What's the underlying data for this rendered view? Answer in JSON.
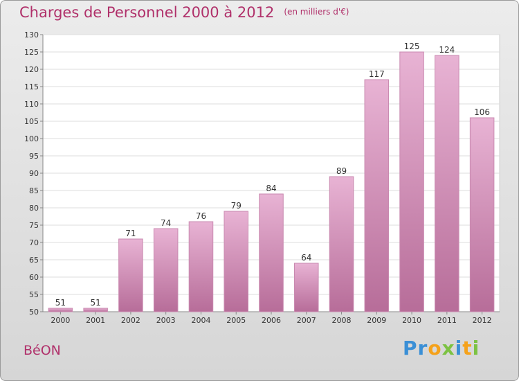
{
  "title": "Charges de Personnel 2000 à 2012",
  "unit_note": "(en milliers d'€)",
  "place_name": "BéON",
  "logo": {
    "text": "Proxiti",
    "letters": [
      "P",
      "r",
      "o",
      "x",
      "i",
      "t",
      "i"
    ],
    "colors": [
      "#3a8fd6",
      "#3a8fd6",
      "#f5a21b",
      "#7cc242",
      "#3a8fd6",
      "#f5a21b",
      "#7cc242"
    ]
  },
  "colors": {
    "bar": "#d994bf",
    "bar_light": "#e8b3d4",
    "bar_dark": "#b76d99",
    "accent": "#b0306a"
  },
  "chart_data": {
    "type": "bar",
    "title": "Charges de Personnel 2000 à 2012",
    "subtitle": "(en milliers d'€)",
    "categories": [
      "2000",
      "2001",
      "2002",
      "2003",
      "2004",
      "2005",
      "2006",
      "2007",
      "2008",
      "2009",
      "2010",
      "2011",
      "2012"
    ],
    "values": [
      51,
      51,
      71,
      74,
      76,
      79,
      84,
      64,
      89,
      117,
      125,
      124,
      106
    ],
    "data_labels": [
      "51",
      "51",
      "71",
      "74",
      "76",
      "79",
      "84",
      "64",
      "89",
      "117",
      "125",
      "124",
      "106"
    ],
    "ylim": [
      50,
      130
    ],
    "yticks": [
      50,
      55,
      60,
      65,
      70,
      75,
      80,
      85,
      90,
      95,
      100,
      105,
      110,
      115,
      120,
      125,
      130
    ],
    "grid": true,
    "legend": "none"
  }
}
